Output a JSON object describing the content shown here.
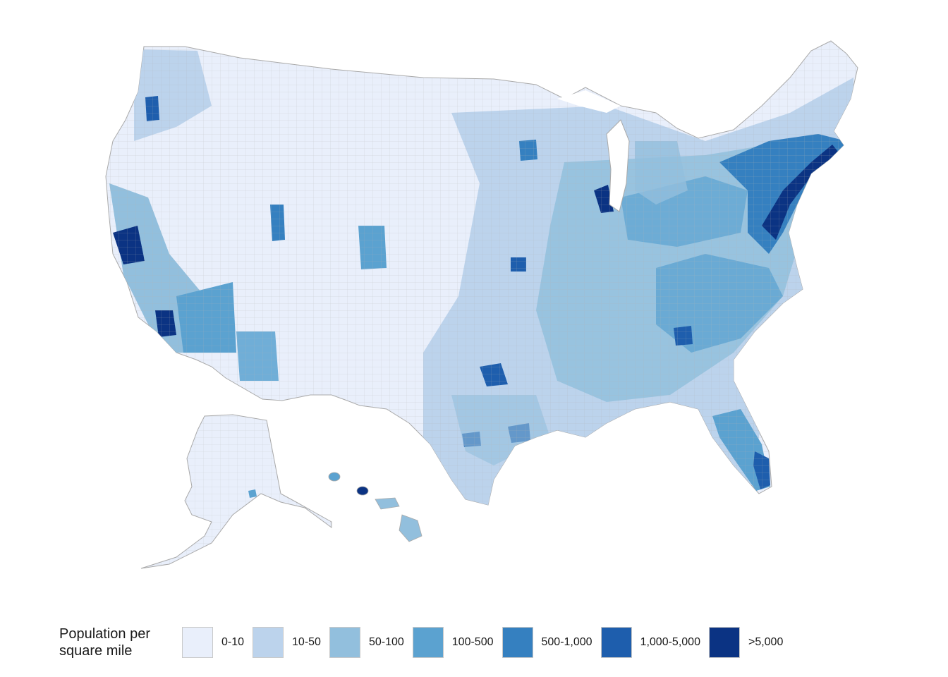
{
  "legend": {
    "title_lines": [
      "Population per",
      "square mile"
    ],
    "items": [
      {
        "label": "0-10",
        "color": "#e9effb"
      },
      {
        "label": "10-50",
        "color": "#bcd3ec"
      },
      {
        "label": "50-100",
        "color": "#92bfdd"
      },
      {
        "label": "100-500",
        "color": "#5ba2d0"
      },
      {
        "label": "500-1,000",
        "color": "#3580c0"
      },
      {
        "label": "1,000-5,000",
        "color": "#1e5ead"
      },
      {
        "label": ">5,000",
        "color": "#0b3383"
      }
    ]
  },
  "map": {
    "border_color": "#a9a9a9",
    "regions": [
      "contiguous-us",
      "alaska",
      "hawaii"
    ]
  }
}
